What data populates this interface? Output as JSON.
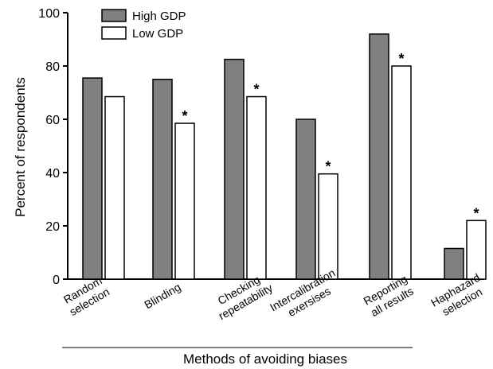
{
  "chart_data": {
    "type": "bar",
    "categories": [
      [
        "Random",
        "selection"
      ],
      [
        "Blinding"
      ],
      [
        "Checking",
        "repeatability"
      ],
      [
        "Intercalibration",
        "exersises"
      ],
      [
        "Reporting",
        "all results"
      ],
      [
        "Haphazard",
        "selection"
      ]
    ],
    "series": [
      {
        "name": "High GDP",
        "values": [
          75.5,
          75,
          82.5,
          60,
          92,
          11.5
        ],
        "color": "#808080"
      },
      {
        "name": "Low GDP",
        "values": [
          68.5,
          58.5,
          68.5,
          39.5,
          80,
          22
        ],
        "color": "#ffffff"
      }
    ],
    "significance": [
      false,
      true,
      true,
      true,
      true,
      true
    ],
    "significance_marker": "*",
    "ylabel": "Percent of respondents",
    "xlabel": "Methods of avoiding biases",
    "ylim": [
      0,
      100
    ],
    "yticks": [
      0,
      20,
      40,
      60,
      80,
      100
    ],
    "grid": false,
    "legend_position": "top-left"
  }
}
